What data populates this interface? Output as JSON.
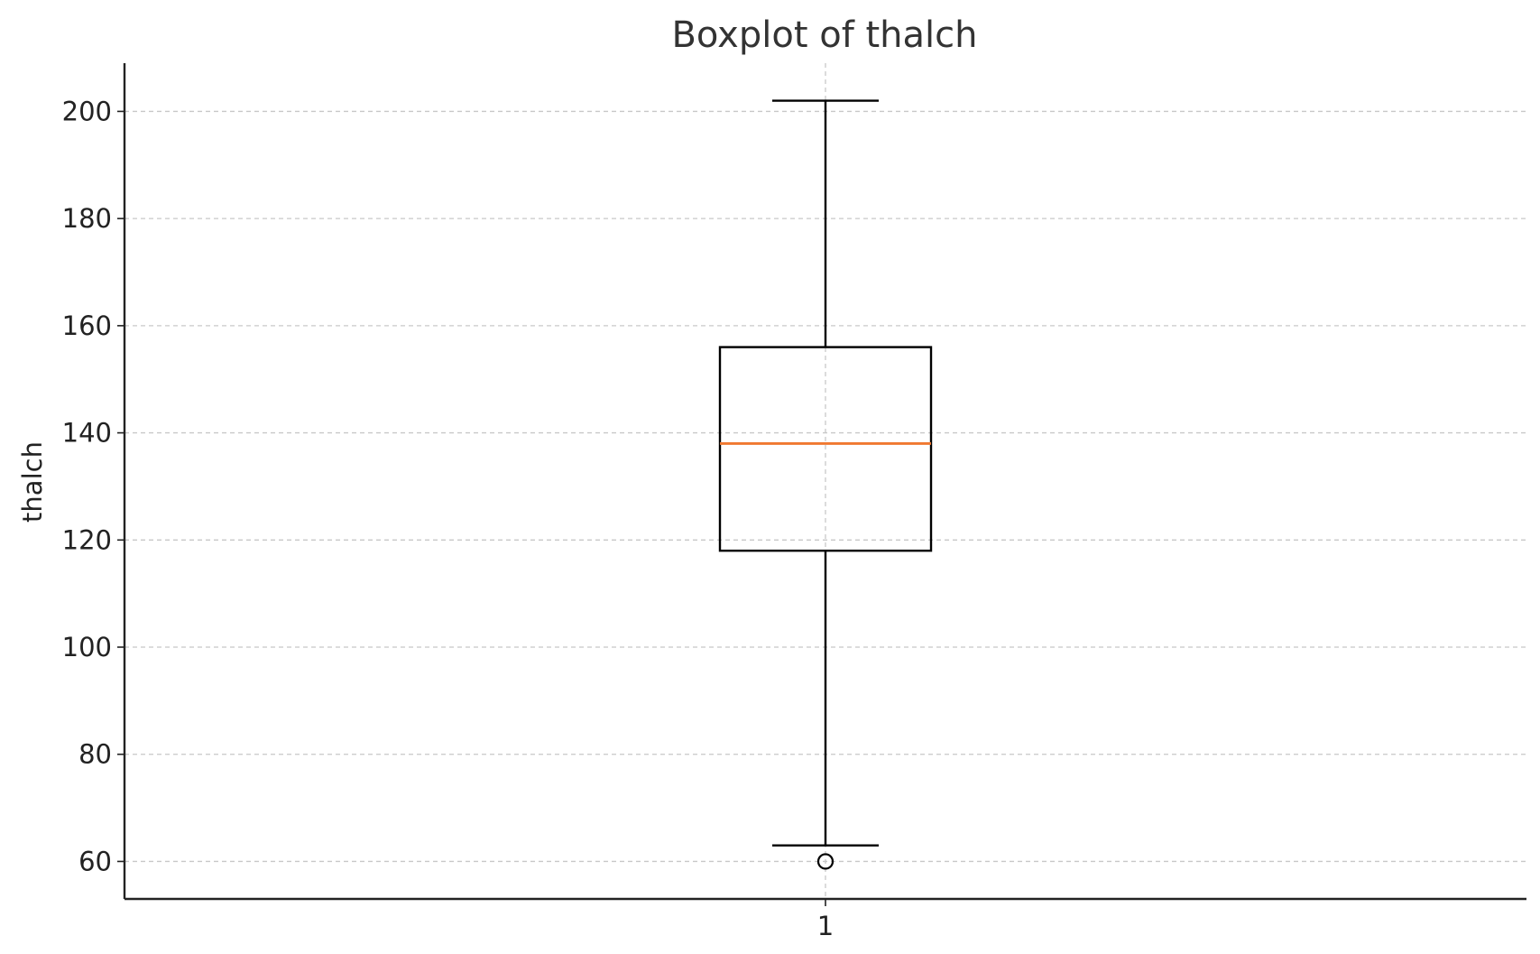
{
  "chart_data": {
    "type": "boxplot",
    "title": "Boxplot of thalch",
    "xlabel": "",
    "ylabel": "thalch",
    "categories": [
      "1"
    ],
    "ylim": [
      53,
      209
    ],
    "yticks": [
      60,
      80,
      100,
      120,
      140,
      160,
      180,
      200
    ],
    "grid": true,
    "boxes": [
      {
        "category": "1",
        "whisker_low": 63,
        "q1": 118,
        "median": 138,
        "q3": 156,
        "whisker_high": 202,
        "fliers": [
          60
        ]
      }
    ],
    "colors": {
      "box": "#000000",
      "median": "#f07830",
      "grid": "#c8c8c8"
    }
  }
}
